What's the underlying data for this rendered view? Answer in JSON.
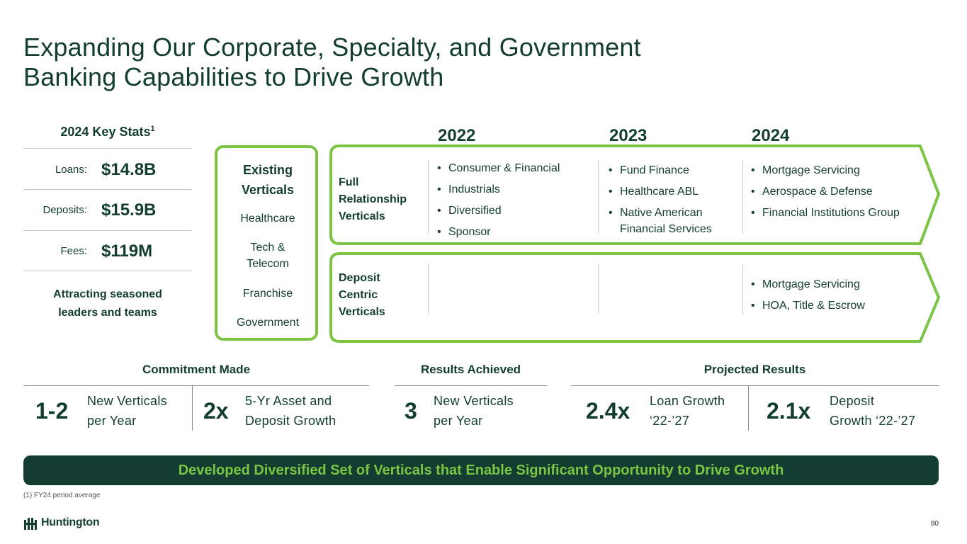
{
  "title": {
    "line1": "Expanding Our Corporate, Specialty, and Government",
    "line2": "Banking Capabilities to Drive Growth"
  },
  "key_stats": {
    "heading": "2024 Key Stats",
    "heading_sup": "1",
    "rows": [
      {
        "label": "Loans:",
        "value": "$14.8B"
      },
      {
        "label": "Deposits:",
        "value": "$15.9B"
      },
      {
        "label": "Fees:",
        "value": "$119M"
      }
    ],
    "note_line1": "Attracting seasoned",
    "note_line2": "leaders and teams"
  },
  "existing": {
    "title_line1": "Existing",
    "title_line2": "Verticals",
    "items": [
      "Healthcare",
      "Tech &",
      "Telecom",
      "Franchise",
      "Government"
    ]
  },
  "years": [
    "2022",
    "2023",
    "2024"
  ],
  "full_relationship": {
    "label_lines": [
      "Full",
      "Relationship",
      "Verticals"
    ],
    "y2022": [
      "Consumer & Financial",
      "Industrials",
      "Diversified",
      "Sponsor"
    ],
    "y2023": [
      "Fund Finance",
      "Healthcare ABL",
      "Native American Financial Services"
    ],
    "y2024": [
      "Mortgage Servicing",
      "Aerospace & Defense",
      "Financial Institutions Group"
    ]
  },
  "deposit_centric": {
    "label_lines": [
      "Deposit",
      "Centric",
      "Verticals"
    ],
    "y2024": [
      "Mortgage Servicing",
      "HOA, Title & Escrow"
    ]
  },
  "results": {
    "commitment_heading": "Commitment Made",
    "achieved_heading": "Results Achieved",
    "projected_heading": "Projected Results",
    "items": [
      {
        "big": "1-2",
        "line1": "New Verticals",
        "line2": "per Year"
      },
      {
        "big": "2x",
        "line1": "5-Yr Asset and",
        "line2": "Deposit Growth"
      },
      {
        "big": "3",
        "line1": "New Verticals",
        "line2": "per Year"
      },
      {
        "big": "2.4x",
        "line1": "Loan Growth",
        "line2": "‘22-’27"
      },
      {
        "big": "2.1x",
        "line1": "Deposit",
        "line2": "Growth ‘22-’27"
      }
    ]
  },
  "banner": "Developed Diversified Set of Verticals that Enable Significant Opportunity to Drive Growth",
  "footnote": "(1) FY24 period average",
  "logo_text": "Huntington",
  "page_number": "80",
  "colors": {
    "dark_green": "#123d30",
    "accent_green": "#7cc443"
  }
}
